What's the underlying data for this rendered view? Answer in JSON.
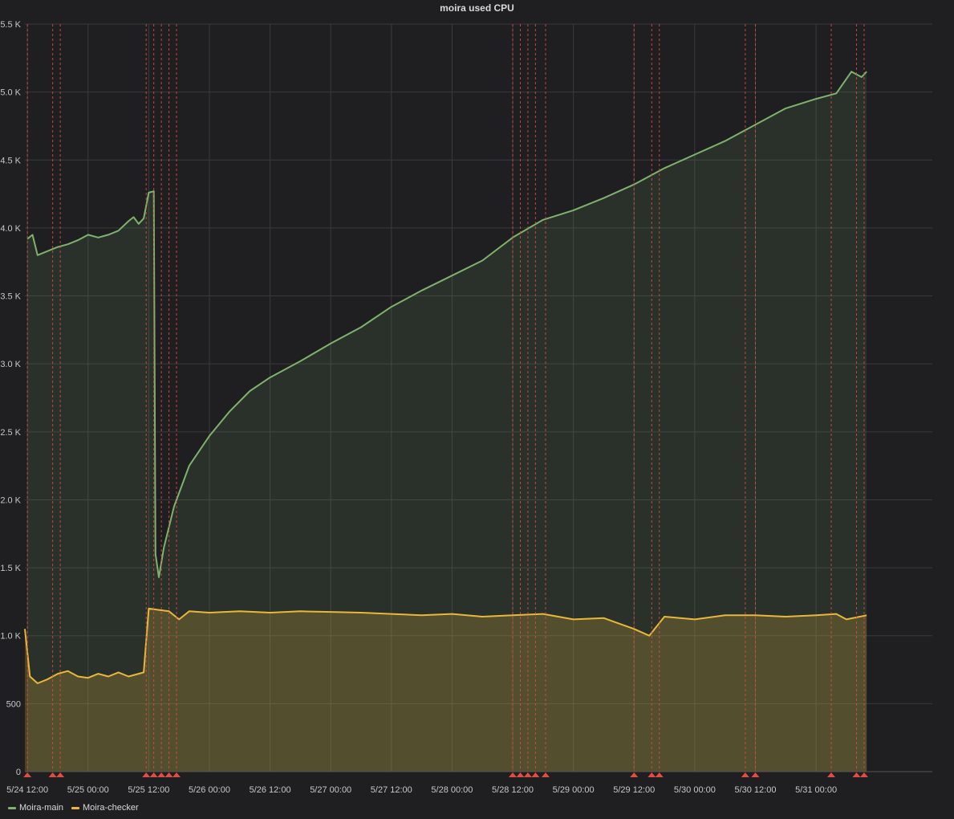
{
  "panel": {
    "title": "moira used CPU"
  },
  "colors": {
    "background": "#1f1f21",
    "grid": "#3a3a3c",
    "main": "#7eb26d",
    "checker": "#eab839",
    "annotation": "#e24d42",
    "text": "#c7c7c7"
  },
  "chart_data": {
    "type": "area",
    "title": "moira used CPU",
    "xlabel": "",
    "ylabel": "",
    "grid": true,
    "legend": "bottom-left",
    "xlim": [
      "2019-05-24 11:30",
      "2019-05-31 23:00"
    ],
    "ylim": [
      0,
      5500
    ],
    "y_ticks": [
      {
        "value": 0,
        "label": "0"
      },
      {
        "value": 500,
        "label": "500"
      },
      {
        "value": 1000,
        "label": "1.0 K"
      },
      {
        "value": 1500,
        "label": "1.5 K"
      },
      {
        "value": 2000,
        "label": "2.0 K"
      },
      {
        "value": 2500,
        "label": "2.5 K"
      },
      {
        "value": 3000,
        "label": "3.0 K"
      },
      {
        "value": 3500,
        "label": "3.5 K"
      },
      {
        "value": 4000,
        "label": "4.0 K"
      },
      {
        "value": 4500,
        "label": "4.5 K"
      },
      {
        "value": 5000,
        "label": "5.0 K"
      },
      {
        "value": 5500,
        "label": "5.5 K"
      }
    ],
    "x_ticks": [
      {
        "value": "2019-05-24 12:00",
        "label": "5/24 12:00"
      },
      {
        "value": "2019-05-25 00:00",
        "label": "5/25 00:00"
      },
      {
        "value": "2019-05-25 12:00",
        "label": "5/25 12:00"
      },
      {
        "value": "2019-05-26 00:00",
        "label": "5/26 00:00"
      },
      {
        "value": "2019-05-26 12:00",
        "label": "5/26 12:00"
      },
      {
        "value": "2019-05-27 00:00",
        "label": "5/27 00:00"
      },
      {
        "value": "2019-05-27 12:00",
        "label": "5/27 12:00"
      },
      {
        "value": "2019-05-28 00:00",
        "label": "5/28 00:00"
      },
      {
        "value": "2019-05-28 12:00",
        "label": "5/28 12:00"
      },
      {
        "value": "2019-05-29 00:00",
        "label": "5/29 00:00"
      },
      {
        "value": "2019-05-29 12:00",
        "label": "5/29 12:00"
      },
      {
        "value": "2019-05-30 00:00",
        "label": "5/30 00:00"
      },
      {
        "value": "2019-05-30 12:00",
        "label": "5/30 12:00"
      },
      {
        "value": "2019-05-31 00:00",
        "label": "5/31 00:00"
      }
    ],
    "annotations": [
      "2019-05-24 12:00",
      "2019-05-24 17:00",
      "2019-05-24 18:30",
      "2019-05-25 11:30",
      "2019-05-25 13:00",
      "2019-05-25 14:30",
      "2019-05-25 16:00",
      "2019-05-25 17:30",
      "2019-05-28 12:00",
      "2019-05-28 13:30",
      "2019-05-28 15:00",
      "2019-05-28 16:30",
      "2019-05-28 18:30",
      "2019-05-29 12:00",
      "2019-05-29 15:30",
      "2019-05-29 17:00",
      "2019-05-30 10:00",
      "2019-05-30 12:00",
      "2019-05-31 03:00",
      "2019-05-31 08:00",
      "2019-05-31 09:30"
    ],
    "series": [
      {
        "name": "Moira-main",
        "points": [
          [
            "2019-05-24 12:00",
            3920
          ],
          [
            "2019-05-24 13:00",
            3950
          ],
          [
            "2019-05-24 14:00",
            3800
          ],
          [
            "2019-05-24 16:00",
            3830
          ],
          [
            "2019-05-24 18:00",
            3860
          ],
          [
            "2019-05-24 20:00",
            3880
          ],
          [
            "2019-05-24 22:00",
            3910
          ],
          [
            "2019-05-25 00:00",
            3950
          ],
          [
            "2019-05-25 02:00",
            3930
          ],
          [
            "2019-05-25 04:00",
            3950
          ],
          [
            "2019-05-25 06:00",
            3980
          ],
          [
            "2019-05-25 08:00",
            4050
          ],
          [
            "2019-05-25 09:00",
            4080
          ],
          [
            "2019-05-25 10:00",
            4030
          ],
          [
            "2019-05-25 11:00",
            4070
          ],
          [
            "2019-05-25 12:00",
            4260
          ],
          [
            "2019-05-25 13:00",
            4270
          ],
          [
            "2019-05-25 13:20",
            1600
          ],
          [
            "2019-05-25 14:00",
            1430
          ],
          [
            "2019-05-25 15:00",
            1650
          ],
          [
            "2019-05-25 17:00",
            1950
          ],
          [
            "2019-05-25 20:00",
            2250
          ],
          [
            "2019-05-26 00:00",
            2470
          ],
          [
            "2019-05-26 04:00",
            2650
          ],
          [
            "2019-05-26 08:00",
            2800
          ],
          [
            "2019-05-26 12:00",
            2900
          ],
          [
            "2019-05-26 18:00",
            3020
          ],
          [
            "2019-05-27 00:00",
            3150
          ],
          [
            "2019-05-27 06:00",
            3270
          ],
          [
            "2019-05-27 12:00",
            3420
          ],
          [
            "2019-05-27 18:00",
            3540
          ],
          [
            "2019-05-28 00:00",
            3650
          ],
          [
            "2019-05-28 06:00",
            3760
          ],
          [
            "2019-05-28 12:00",
            3930
          ],
          [
            "2019-05-28 18:00",
            4060
          ],
          [
            "2019-05-29 00:00",
            4130
          ],
          [
            "2019-05-29 06:00",
            4220
          ],
          [
            "2019-05-29 12:00",
            4320
          ],
          [
            "2019-05-29 18:00",
            4440
          ],
          [
            "2019-05-30 00:00",
            4540
          ],
          [
            "2019-05-30 06:00",
            4640
          ],
          [
            "2019-05-30 12:00",
            4760
          ],
          [
            "2019-05-30 18:00",
            4880
          ],
          [
            "2019-05-31 00:00",
            4950
          ],
          [
            "2019-05-31 04:00",
            4990
          ],
          [
            "2019-05-31 07:00",
            5150
          ],
          [
            "2019-05-31 09:00",
            5110
          ],
          [
            "2019-05-31 10:00",
            5150
          ]
        ]
      },
      {
        "name": "Moira-checker",
        "points": [
          [
            "2019-05-24 11:30",
            1050
          ],
          [
            "2019-05-24 12:30",
            700
          ],
          [
            "2019-05-24 14:00",
            650
          ],
          [
            "2019-05-24 16:00",
            680
          ],
          [
            "2019-05-24 18:00",
            720
          ],
          [
            "2019-05-24 20:00",
            740
          ],
          [
            "2019-05-24 22:00",
            700
          ],
          [
            "2019-05-25 00:00",
            690
          ],
          [
            "2019-05-25 02:00",
            720
          ],
          [
            "2019-05-25 04:00",
            700
          ],
          [
            "2019-05-25 06:00",
            730
          ],
          [
            "2019-05-25 08:00",
            700
          ],
          [
            "2019-05-25 10:00",
            720
          ],
          [
            "2019-05-25 11:00",
            730
          ],
          [
            "2019-05-25 12:00",
            1200
          ],
          [
            "2019-05-25 14:00",
            1190
          ],
          [
            "2019-05-25 16:00",
            1180
          ],
          [
            "2019-05-25 18:00",
            1120
          ],
          [
            "2019-05-25 20:00",
            1180
          ],
          [
            "2019-05-26 00:00",
            1170
          ],
          [
            "2019-05-26 06:00",
            1180
          ],
          [
            "2019-05-26 12:00",
            1170
          ],
          [
            "2019-05-26 18:00",
            1180
          ],
          [
            "2019-05-27 00:00",
            1175
          ],
          [
            "2019-05-27 06:00",
            1170
          ],
          [
            "2019-05-27 12:00",
            1160
          ],
          [
            "2019-05-27 18:00",
            1150
          ],
          [
            "2019-05-28 00:00",
            1160
          ],
          [
            "2019-05-28 06:00",
            1140
          ],
          [
            "2019-05-28 12:00",
            1150
          ],
          [
            "2019-05-28 18:00",
            1160
          ],
          [
            "2019-05-29 00:00",
            1120
          ],
          [
            "2019-05-29 06:00",
            1130
          ],
          [
            "2019-05-29 12:00",
            1050
          ],
          [
            "2019-05-29 15:00",
            1000
          ],
          [
            "2019-05-29 18:00",
            1140
          ],
          [
            "2019-05-30 00:00",
            1120
          ],
          [
            "2019-05-30 06:00",
            1150
          ],
          [
            "2019-05-30 12:00",
            1150
          ],
          [
            "2019-05-30 18:00",
            1140
          ],
          [
            "2019-05-31 00:00",
            1150
          ],
          [
            "2019-05-31 04:00",
            1160
          ],
          [
            "2019-05-31 06:00",
            1120
          ],
          [
            "2019-05-31 10:00",
            1150
          ]
        ]
      }
    ]
  }
}
